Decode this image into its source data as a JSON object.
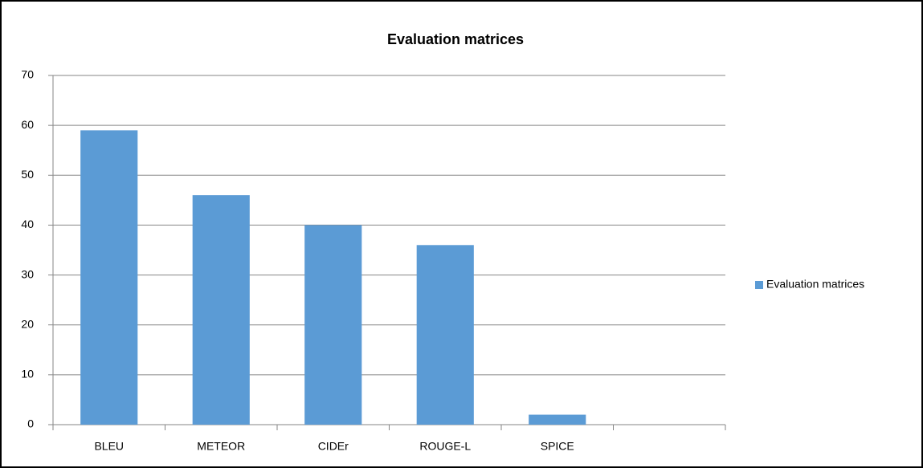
{
  "chart_data": {
    "type": "bar",
    "title": "Evaluation matrices",
    "categories": [
      "BLEU",
      "METEOR",
      "CIDEr",
      "ROUGE-L",
      "SPICE",
      null
    ],
    "series": [
      {
        "name": "Evaluation matrices",
        "color": "#5b9bd5",
        "values": [
          59,
          46,
          40,
          36,
          2,
          null
        ]
      }
    ],
    "ylim": [
      0,
      70
    ],
    "yticks": [
      0,
      10,
      20,
      30,
      40,
      50,
      60,
      70
    ],
    "grid": true,
    "legend": "right"
  }
}
